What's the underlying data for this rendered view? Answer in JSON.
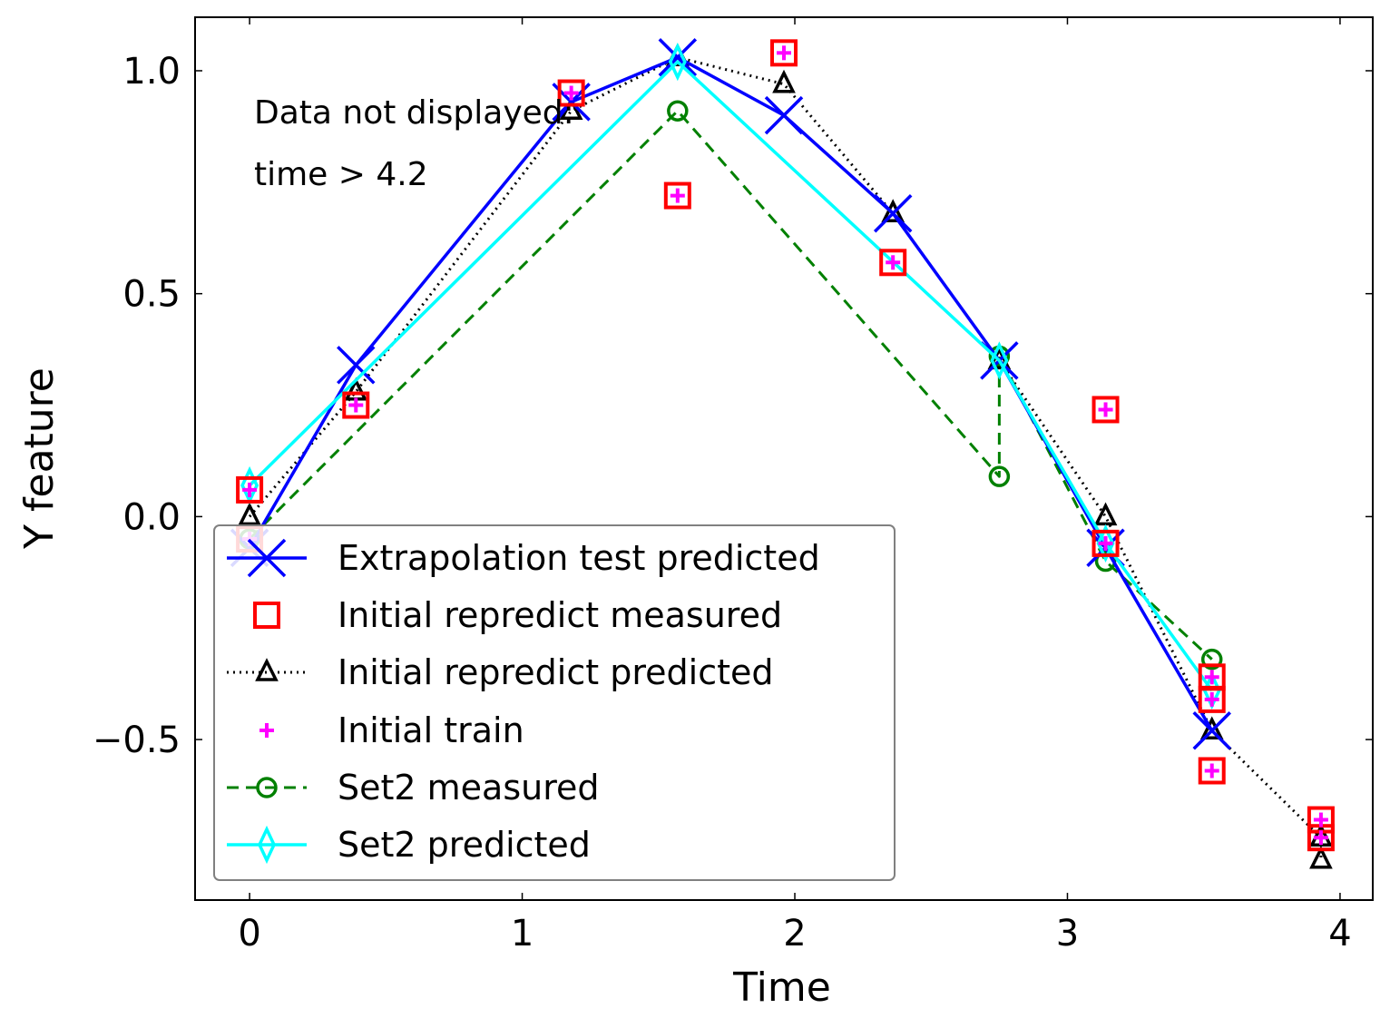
{
  "chart_data": {
    "type": "line",
    "title": "",
    "xlabel": "Time",
    "ylabel": "Y feature",
    "xlim": [
      -0.2,
      4.12
    ],
    "ylim": [
      -0.86,
      1.12
    ],
    "xticks": [
      0,
      1,
      2,
      3,
      4
    ],
    "xtick_labels": [
      "0",
      "1",
      "2",
      "3",
      "4"
    ],
    "yticks": [
      -0.5,
      0.0,
      0.5,
      1.0
    ],
    "ytick_labels": [
      "−0.5",
      "0.0",
      "0.5",
      "1.0"
    ],
    "grid": false,
    "legend_placement": "lower-left",
    "annotation": [
      "Data not displayed:",
      "time > 4.2"
    ],
    "series": [
      {
        "name": "Extrapolation test predicted",
        "color": "#0000ff",
        "line": "solid",
        "marker": "x",
        "x": [
          0.0,
          0.39,
          1.18,
          1.57,
          1.96,
          2.36,
          2.75,
          3.14,
          3.53
        ],
        "y": [
          -0.07,
          0.34,
          0.93,
          1.03,
          0.9,
          0.68,
          0.35,
          -0.07,
          -0.48
        ]
      },
      {
        "name": "Initial repredict measured",
        "color": "#ff0000",
        "line": "none",
        "marker": "square",
        "x": [
          0.0,
          0.0,
          0.39,
          1.18,
          1.57,
          1.96,
          2.36,
          3.14,
          3.14,
          3.53,
          3.53,
          3.53,
          3.93,
          3.93
        ],
        "y": [
          0.06,
          -0.05,
          0.25,
          0.95,
          0.72,
          1.04,
          0.57,
          0.24,
          -0.06,
          -0.36,
          -0.41,
          -0.57,
          -0.68,
          -0.72
        ]
      },
      {
        "name": "Initial repredict predicted",
        "color": "#000000",
        "line": "dotted",
        "marker": "triangle",
        "x": [
          0.0,
          0.39,
          1.18,
          1.57,
          1.96,
          2.36,
          2.75,
          3.14,
          3.53,
          3.93,
          3.93
        ],
        "y": [
          0.0,
          0.28,
          0.91,
          1.03,
          0.97,
          0.68,
          0.35,
          0.0,
          -0.48,
          -0.72,
          -0.77
        ]
      },
      {
        "name": "Initial train",
        "color": "#ff00ff",
        "line": "none",
        "marker": "plus",
        "x": [
          0.0,
          0.0,
          0.39,
          1.18,
          1.57,
          1.96,
          2.36,
          3.14,
          3.14,
          3.53,
          3.53,
          3.53,
          3.93,
          3.93
        ],
        "y": [
          0.06,
          -0.05,
          0.25,
          0.95,
          0.72,
          1.04,
          0.57,
          0.24,
          -0.06,
          -0.36,
          -0.41,
          -0.57,
          -0.68,
          -0.72
        ]
      },
      {
        "name": "Set2 measured",
        "color": "#008000",
        "line": "dashed",
        "marker": "circle",
        "x": [
          0.0,
          1.57,
          2.75,
          2.75,
          3.14,
          3.53
        ],
        "y": [
          -0.05,
          0.91,
          0.09,
          0.36,
          -0.1,
          -0.32
        ]
      },
      {
        "name": "Set2 predicted",
        "color": "#00ffff",
        "line": "solid",
        "marker": "thin_diamond",
        "x": [
          0.0,
          1.57,
          2.75,
          3.14,
          3.53
        ],
        "y": [
          0.07,
          1.02,
          0.35,
          -0.06,
          -0.39
        ]
      }
    ]
  }
}
